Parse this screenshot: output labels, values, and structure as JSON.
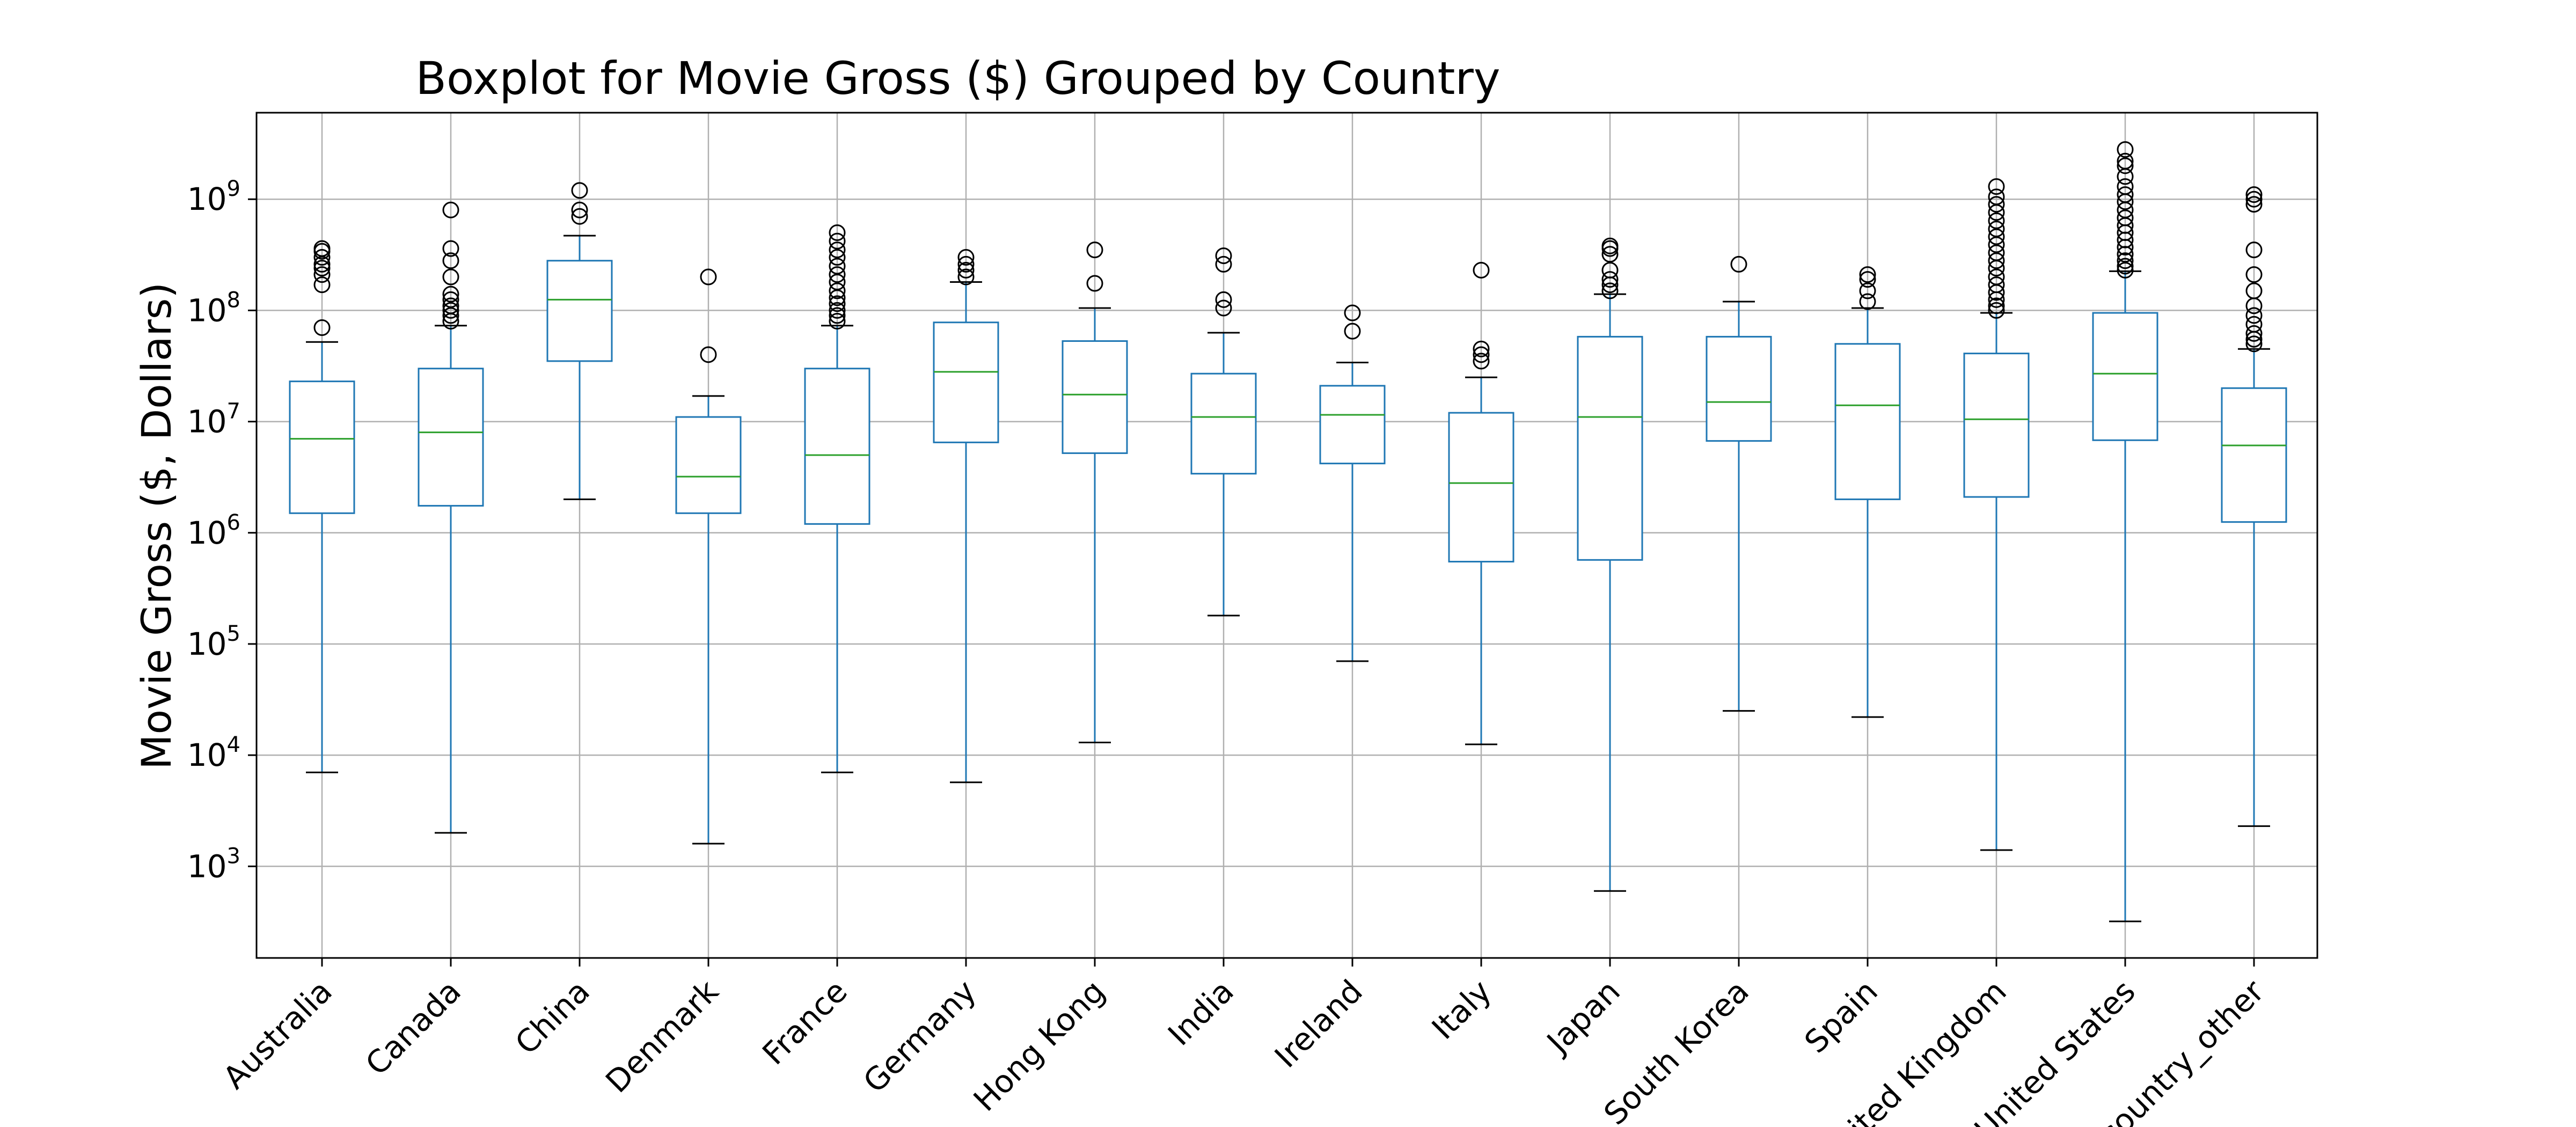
{
  "chart_data": {
    "type": "boxplot",
    "title": "Boxplot for Movie Gross ($) Grouped by Country",
    "xlabel": "",
    "ylabel": "Movie Gross ($, Dollars)",
    "yscale": "log",
    "ylim": [
      150,
      6000000000
    ],
    "grid": true,
    "colors": {
      "box": "#1f77b4",
      "median": "#2ca02c",
      "cap": "#000000",
      "outlier": "#000000",
      "grid": "#b0b0b0"
    },
    "yticks": [
      {
        "base": "10",
        "exp": "3",
        "value": 1000
      },
      {
        "base": "10",
        "exp": "4",
        "value": 10000
      },
      {
        "base": "10",
        "exp": "5",
        "value": 100000
      },
      {
        "base": "10",
        "exp": "6",
        "value": 1000000
      },
      {
        "base": "10",
        "exp": "7",
        "value": 10000000
      },
      {
        "base": "10",
        "exp": "8",
        "value": 100000000
      },
      {
        "base": "10",
        "exp": "9",
        "value": 1000000000
      }
    ],
    "categories": [
      "Australia",
      "Canada",
      "China",
      "Denmark",
      "France",
      "Germany",
      "Hong Kong",
      "India",
      "Ireland",
      "Italy",
      "Japan",
      "South Korea",
      "Spain",
      "United Kingdom",
      "United States",
      "country_other"
    ],
    "boxes": [
      {
        "whislo": 7000,
        "q1": 1500000,
        "med": 7000000,
        "q3": 23000000,
        "whishi": 52000000,
        "fliers": [
          70000000,
          170000000,
          210000000,
          240000000,
          260000000,
          300000000,
          340000000,
          360000000
        ]
      },
      {
        "whislo": 2000,
        "q1": 1750000,
        "med": 8000000,
        "q3": 30000000,
        "whishi": 73000000,
        "fliers": [
          80000000,
          90000000,
          100000000,
          110000000,
          125000000,
          140000000,
          200000000,
          280000000,
          360000000,
          800000000
        ]
      },
      {
        "whislo": 2000000,
        "q1": 35000000,
        "med": 125000000,
        "q3": 280000000,
        "whishi": 470000000,
        "fliers": [
          700000000,
          800000000,
          1200000000
        ]
      },
      {
        "whislo": 1600,
        "q1": 1500000,
        "med": 3200000,
        "q3": 11000000,
        "whishi": 17000000,
        "fliers": [
          40000000,
          200000000
        ]
      },
      {
        "whislo": 7000,
        "q1": 1200000,
        "med": 5000000,
        "q3": 30000000,
        "whishi": 73000000,
        "fliers": [
          80000000,
          90000000,
          100000000,
          115000000,
          130000000,
          150000000,
          180000000,
          210000000,
          250000000,
          300000000,
          350000000,
          420000000,
          500000000
        ]
      },
      {
        "whislo": 5700,
        "q1": 6500000,
        "med": 28000000,
        "q3": 78000000,
        "whishi": 180000000,
        "fliers": [
          200000000,
          230000000,
          260000000,
          300000000
        ]
      },
      {
        "whislo": 13000,
        "q1": 5200000,
        "med": 17500000,
        "q3": 53000000,
        "whishi": 105000000,
        "fliers": [
          175000000,
          350000000
        ]
      },
      {
        "whislo": 180000,
        "q1": 3400000,
        "med": 11000000,
        "q3": 27000000,
        "whishi": 63000000,
        "fliers": [
          105000000,
          125000000,
          260000000,
          310000000
        ]
      },
      {
        "whislo": 70000,
        "q1": 4200000,
        "med": 11500000,
        "q3": 21000000,
        "whishi": 34000000,
        "fliers": [
          65000000,
          95000000
        ]
      },
      {
        "whislo": 12500,
        "q1": 550000,
        "med": 2800000,
        "q3": 12000000,
        "whishi": 25000000,
        "fliers": [
          35000000,
          40000000,
          45000000,
          230000000
        ]
      },
      {
        "whislo": 600,
        "q1": 570000,
        "med": 11000000,
        "q3": 58000000,
        "whishi": 140000000,
        "fliers": [
          150000000,
          170000000,
          190000000,
          230000000,
          320000000,
          360000000,
          380000000
        ]
      },
      {
        "whislo": 25000,
        "q1": 6700000,
        "med": 15000000,
        "q3": 58000000,
        "whishi": 120000000,
        "fliers": [
          260000000
        ]
      },
      {
        "whislo": 22000,
        "q1": 2000000,
        "med": 14000000,
        "q3": 50000000,
        "whishi": 105000000,
        "fliers": [
          120000000,
          150000000,
          190000000,
          210000000
        ]
      },
      {
        "whislo": 1400,
        "q1": 2100000,
        "med": 10500000,
        "q3": 41000000,
        "whishi": 95000000,
        "fliers": [
          100000000,
          110000000,
          125000000,
          145000000,
          170000000,
          200000000,
          240000000,
          280000000,
          330000000,
          390000000,
          460000000,
          540000000,
          640000000,
          760000000,
          900000000,
          1050000000,
          1300000000
        ]
      },
      {
        "whislo": 320,
        "q1": 6800000,
        "med": 27000000,
        "q3": 95000000,
        "whishi": 225000000,
        "fliers": [
          230000000,
          250000000,
          280000000,
          320000000,
          370000000,
          430000000,
          500000000,
          580000000,
          680000000,
          800000000,
          950000000,
          1100000000,
          1300000000,
          1600000000,
          2000000000,
          2200000000,
          2800000000
        ]
      },
      {
        "whislo": 2300,
        "q1": 1250000,
        "med": 6100000,
        "q3": 20000000,
        "whishi": 45000000,
        "fliers": [
          50000000,
          55000000,
          62000000,
          75000000,
          90000000,
          110000000,
          150000000,
          210000000,
          350000000,
          900000000,
          1000000000,
          1100000000
        ]
      }
    ]
  }
}
